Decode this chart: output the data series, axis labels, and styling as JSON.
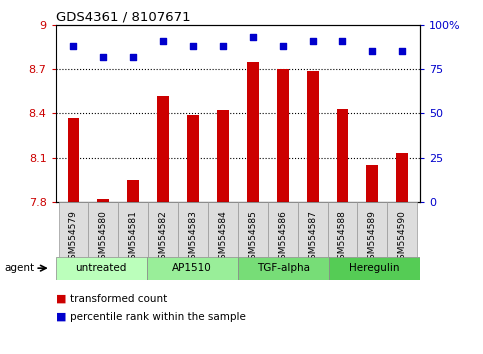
{
  "title": "GDS4361 / 8107671",
  "samples": [
    "GSM554579",
    "GSM554580",
    "GSM554581",
    "GSM554582",
    "GSM554583",
    "GSM554584",
    "GSM554585",
    "GSM554586",
    "GSM554587",
    "GSM554588",
    "GSM554589",
    "GSM554590"
  ],
  "bar_values": [
    8.37,
    7.82,
    7.95,
    8.52,
    8.39,
    8.42,
    8.75,
    8.7,
    8.69,
    8.43,
    8.05,
    8.13
  ],
  "percentile_values": [
    88,
    82,
    82,
    91,
    88,
    88,
    93,
    88,
    91,
    91,
    85,
    85
  ],
  "bar_color": "#cc0000",
  "dot_color": "#0000cc",
  "ylim_left": [
    7.8,
    9.0
  ],
  "ylim_right": [
    0,
    100
  ],
  "yticks_left": [
    7.8,
    8.1,
    8.4,
    8.7,
    9.0
  ],
  "ytick_labels_left": [
    "7.8",
    "8.1",
    "8.4",
    "8.7",
    "9"
  ],
  "yticks_right": [
    0,
    25,
    50,
    75,
    100
  ],
  "ytick_labels_right": [
    "0",
    "25",
    "50",
    "75",
    "100%"
  ],
  "gridlines": [
    8.1,
    8.4,
    8.7
  ],
  "groups": [
    {
      "label": "untreated",
      "start": 0,
      "end": 3,
      "color": "#bbffbb"
    },
    {
      "label": "AP1510",
      "start": 3,
      "end": 6,
      "color": "#99ee99"
    },
    {
      "label": "TGF-alpha",
      "start": 6,
      "end": 9,
      "color": "#77dd77"
    },
    {
      "label": "Heregulin",
      "start": 9,
      "end": 12,
      "color": "#55cc55"
    }
  ],
  "agent_label": "agent",
  "legend_bar_label": "transformed count",
  "legend_dot_label": "percentile rank within the sample",
  "bar_width": 0.4,
  "background_color": "#ffffff",
  "plot_bg_color": "#ffffff",
  "xtick_bg_color": "#dddddd",
  "axis_label_color_left": "#cc0000",
  "axis_label_color_right": "#0000cc"
}
